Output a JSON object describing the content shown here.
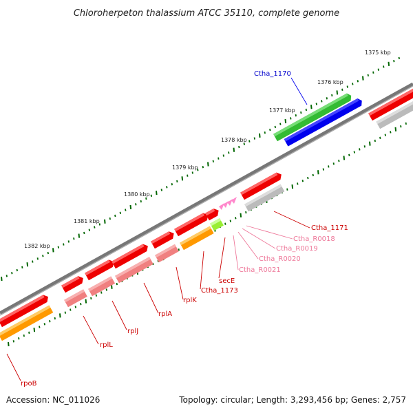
{
  "title": "Chloroherpeton thalassium ATCC 35110, complete genome",
  "footer": {
    "accession": "Accession: NC_011026",
    "summary": "Topology: circular; Length: 3,293,456 bp; Genes: 2,757"
  },
  "scale_labels": [
    "1375 kbp",
    "1376 kbp",
    "1377 kbp",
    "1378 kbp",
    "1379 kbp",
    "1380 kbp",
    "1381 kbp",
    "1382 kbp"
  ],
  "features": [
    {
      "label": "Ctha_1170",
      "color": "#0000cc"
    },
    {
      "label": "Ctha_1171",
      "color": "#cc0000"
    },
    {
      "label": "Ctha_R0018",
      "color": "#ee7799"
    },
    {
      "label": "Ctha_R0019",
      "color": "#ee7799"
    },
    {
      "label": "Ctha_R0020",
      "color": "#ee7799"
    },
    {
      "label": "Ctha_R0021",
      "color": "#ee7799"
    },
    {
      "label": "secE",
      "color": "#cc0000"
    },
    {
      "label": "Ctha_1173",
      "color": "#cc0000"
    },
    {
      "label": "rplK",
      "color": "#cc0000"
    },
    {
      "label": "rplA",
      "color": "#cc0000"
    },
    {
      "label": "rplJ",
      "color": "#cc0000"
    },
    {
      "label": "rplL",
      "color": "#cc0000"
    },
    {
      "label": "rpoB",
      "color": "#cc0000"
    }
  ],
  "colors": {
    "cds": "#ee0000",
    "cds_light": "#f08080",
    "gene_gray": "#bbbbbb",
    "green": "#33bb33",
    "blue": "#0000ee",
    "orange": "#ff9900",
    "lime": "#99ee33",
    "trna": "#ff88cc",
    "tick": "#006600",
    "genome": "#777777"
  }
}
